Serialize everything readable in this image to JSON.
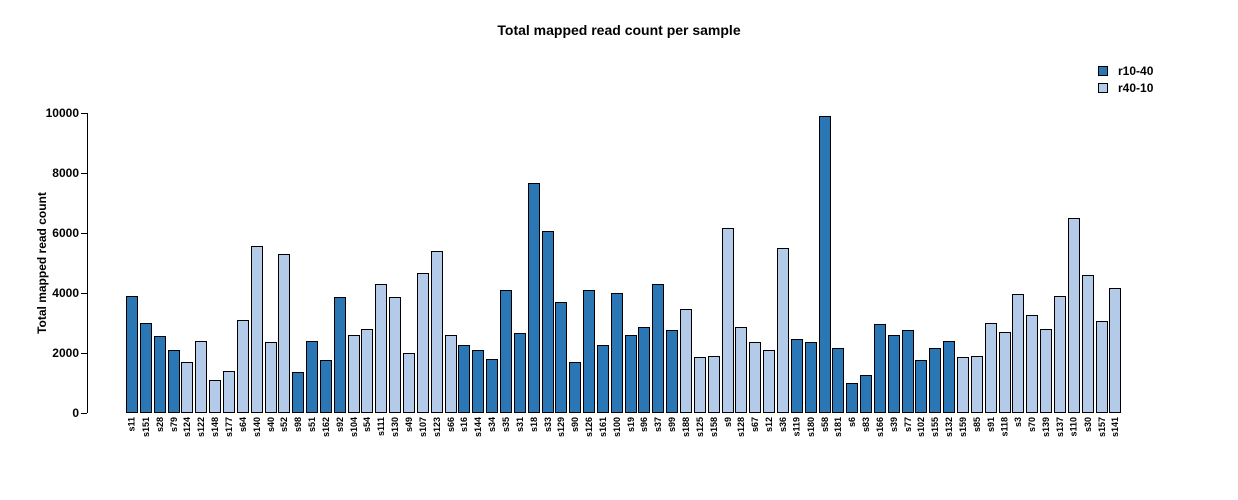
{
  "chart_data": {
    "type": "bar",
    "title": "Total mapped read count per sample",
    "xlabel": "",
    "ylabel": "Total mapped read count",
    "ylim": [
      0,
      10000
    ],
    "yticks": [
      0,
      2000,
      4000,
      6000,
      8000,
      10000
    ],
    "grid": false,
    "legend_position": "top-right",
    "series": [
      {
        "name": "r10-40",
        "color": "#2b77b5"
      },
      {
        "name": "r40-10",
        "color": "#b3cbe8"
      }
    ],
    "categories": [
      "s11",
      "s151",
      "s28",
      "s79",
      "s124",
      "s122",
      "s148",
      "s177",
      "s64",
      "s140",
      "s40",
      "s52",
      "s98",
      "s51",
      "s162",
      "s92",
      "s104",
      "s54",
      "s111",
      "s130",
      "s49",
      "s107",
      "s123",
      "s66",
      "s16",
      "s144",
      "s34",
      "s35",
      "s31",
      "s18",
      "s33",
      "s129",
      "s90",
      "s126",
      "s161",
      "s100",
      "s19",
      "s96",
      "s37",
      "s99",
      "s188",
      "s125",
      "s158",
      "s9",
      "s128",
      "s67",
      "s12",
      "s36",
      "s119",
      "s180",
      "s58",
      "s181",
      "s6",
      "s83",
      "s166",
      "s39",
      "s77",
      "s102",
      "s155",
      "s132",
      "s159",
      "s85",
      "s91",
      "s118",
      "s3",
      "s70",
      "s139",
      "s137",
      "s110",
      "s30",
      "s157",
      "s141"
    ],
    "values": [
      3900,
      3000,
      2550,
      2100,
      1700,
      2400,
      1100,
      1400,
      3100,
      5550,
      2350,
      5300,
      1350,
      2400,
      1750,
      3850,
      2600,
      2800,
      4300,
      3850,
      2000,
      4650,
      5400,
      2600,
      2250,
      2100,
      1800,
      4100,
      2650,
      7650,
      6050,
      3700,
      1700,
      4100,
      2250,
      4000,
      2600,
      2850,
      4300,
      2750,
      3450,
      1850,
      1900,
      6150,
      2850,
      2350,
      2100,
      5500,
      2450,
      2350,
      9900,
      2150,
      1000,
      1250,
      2950,
      2600,
      2750,
      1750,
      2150,
      2400,
      1850,
      1900,
      3000,
      2700,
      3950,
      3250,
      2800,
      3900,
      6500,
      4600,
      3050,
      4150
    ],
    "bar_series": [
      "r10-40",
      "r10-40",
      "r10-40",
      "r10-40",
      "r40-10",
      "r40-10",
      "r40-10",
      "r40-10",
      "r40-10",
      "r40-10",
      "r40-10",
      "r40-10",
      "r10-40",
      "r10-40",
      "r10-40",
      "r10-40",
      "r40-10",
      "r40-10",
      "r40-10",
      "r40-10",
      "r40-10",
      "r40-10",
      "r40-10",
      "r40-10",
      "r10-40",
      "r10-40",
      "r10-40",
      "r10-40",
      "r10-40",
      "r10-40",
      "r10-40",
      "r10-40",
      "r10-40",
      "r10-40",
      "r10-40",
      "r10-40",
      "r10-40",
      "r10-40",
      "r10-40",
      "r10-40",
      "r40-10",
      "r40-10",
      "r40-10",
      "r40-10",
      "r40-10",
      "r40-10",
      "r40-10",
      "r40-10",
      "r10-40",
      "r10-40",
      "r10-40",
      "r10-40",
      "r10-40",
      "r10-40",
      "r10-40",
      "r10-40",
      "r10-40",
      "r10-40",
      "r10-40",
      "r10-40",
      "r40-10",
      "r40-10",
      "r40-10",
      "r40-10",
      "r40-10",
      "r40-10",
      "r40-10",
      "r40-10",
      "r40-10",
      "r40-10",
      "r40-10",
      "r40-10"
    ]
  },
  "colors": {
    "axis": "#000000",
    "background": "#ffffff"
  }
}
